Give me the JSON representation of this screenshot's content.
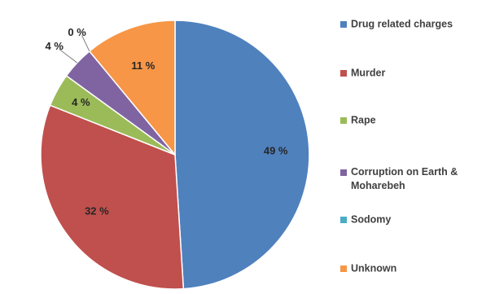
{
  "chart_data": {
    "type": "pie",
    "slices": [
      {
        "label": "Drug related charges",
        "value": 49,
        "display": "49 %",
        "color": "#4F81BD"
      },
      {
        "label": "Murder",
        "value": 32,
        "display": "32 %",
        "color": "#C0504D"
      },
      {
        "label": "Rape",
        "value": 4,
        "display": "4 %",
        "color": "#9BBB59"
      },
      {
        "label": "Corruption on Earth & Moharebeh",
        "value": 4,
        "display": "4 %",
        "color": "#8064A2"
      },
      {
        "label": "Sodomy",
        "value": 0,
        "display": "0 %",
        "color": "#4BACC6"
      },
      {
        "label": "Unknown",
        "value": 11,
        "display": "11 %",
        "color": "#F79646"
      }
    ],
    "legend_position": "right"
  }
}
